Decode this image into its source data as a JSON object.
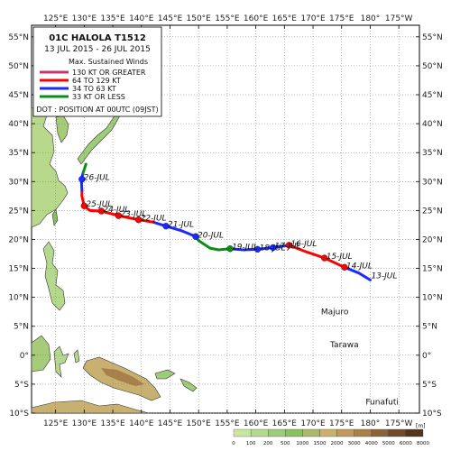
{
  "map": {
    "lon_ticks": [
      "125°E",
      "130°E",
      "135°E",
      "140°E",
      "145°E",
      "150°E",
      "155°E",
      "160°E",
      "165°E",
      "170°E",
      "175°E",
      "180°",
      "175°W"
    ],
    "lon_values": [
      125,
      130,
      135,
      140,
      145,
      150,
      155,
      160,
      165,
      170,
      175,
      180,
      185
    ],
    "lat_ticks": [
      "55°N",
      "50°N",
      "45°N",
      "40°N",
      "35°N",
      "30°N",
      "25°N",
      "20°N",
      "15°N",
      "10°N",
      "5°N",
      "0°",
      "5°S",
      "10°S"
    ],
    "lat_values": [
      55,
      50,
      45,
      40,
      35,
      30,
      25,
      20,
      15,
      10,
      5,
      0,
      -5,
      -10
    ],
    "places": [
      {
        "name": "Majuro",
        "lon": 171.4,
        "lat": 7.1
      },
      {
        "name": "Tarawa",
        "lon": 173.0,
        "lat": 1.4
      },
      {
        "name": "Funafuti",
        "lon": 179.2,
        "lat": -8.5
      }
    ],
    "colorbar": {
      "ticks": [
        "0",
        "100",
        "200",
        "500",
        "1000",
        "1500",
        "2000",
        "3000",
        "4000",
        "5000",
        "6000",
        "8000"
      ],
      "unit": "[m]",
      "colors": [
        "#c8e6a0",
        "#b4d98c",
        "#9fcc78",
        "#8bbf64",
        "#a9b86a",
        "#c8b070",
        "#c09a5e",
        "#a8804a",
        "#8a6438",
        "#6e4c2a",
        "#52361e"
      ]
    }
  },
  "legend": {
    "title": "01C  HALOLA  T1512",
    "dates": "13 JUL 2015 - 26 JUL 2015",
    "subtitle": "Max. Sustained Winds",
    "entries": [
      {
        "label": "130 KT OR GREATER",
        "color": "#c4386e"
      },
      {
        "label": "64 TO 129 KT",
        "color": "#ff0000"
      },
      {
        "label": "34 TO 63 KT",
        "color": "#1a2bff"
      },
      {
        "label": "33 KT OR LESS",
        "color": "#0a8f16"
      }
    ],
    "dot_note": "DOT : POSITION AT 00UTC (09JST)"
  },
  "track": {
    "segments": [
      {
        "color": "#1a2bff",
        "points": [
          [
            180.0,
            13.0
          ],
          [
            178.0,
            14.2
          ],
          [
            175.5,
            15.2
          ]
        ]
      },
      {
        "color": "#ff0000",
        "points": [
          [
            175.5,
            15.2
          ],
          [
            172.0,
            16.8
          ],
          [
            169.0,
            17.8
          ],
          [
            165.8,
            19.0
          ]
        ]
      },
      {
        "color": "#1a2bff",
        "points": [
          [
            165.8,
            19.0
          ],
          [
            163.0,
            18.6
          ],
          [
            160.3,
            18.3
          ],
          [
            157.8,
            18.2
          ],
          [
            155.5,
            18.4
          ]
        ]
      },
      {
        "color": "#0a8f16",
        "points": [
          [
            155.5,
            18.4
          ],
          [
            153.5,
            18.2
          ],
          [
            152.0,
            18.5
          ],
          [
            150.0,
            19.8
          ],
          [
            149.5,
            20.5
          ]
        ]
      },
      {
        "color": "#1a2bff",
        "points": [
          [
            149.5,
            20.5
          ],
          [
            147.0,
            21.5
          ],
          [
            144.3,
            22.3
          ],
          [
            142.0,
            23.0
          ]
        ]
      },
      {
        "color": "#ff0000",
        "points": [
          [
            142.0,
            23.0
          ],
          [
            139.5,
            23.4
          ],
          [
            136.0,
            24.1
          ],
          [
            133.0,
            24.9
          ],
          [
            131.0,
            25.0
          ],
          [
            130.0,
            25.8
          ],
          [
            129.6,
            27.5
          ],
          [
            129.6,
            28.5
          ]
        ]
      },
      {
        "color": "#1a2bff",
        "points": [
          [
            129.6,
            28.5
          ],
          [
            129.5,
            30.4
          ],
          [
            129.8,
            31.5
          ]
        ]
      },
      {
        "color": "#0a8f16",
        "points": [
          [
            129.8,
            31.5
          ],
          [
            130.1,
            32.4
          ],
          [
            130.3,
            33.0
          ]
        ]
      }
    ],
    "dots": [
      {
        "lon": 175.5,
        "lat": 15.2,
        "color": "#ff0000",
        "label": "14-JUL"
      },
      {
        "lon": 172.0,
        "lat": 16.8,
        "color": "#ff0000",
        "label": "15-JUL"
      },
      {
        "lon": 165.8,
        "lat": 19.0,
        "color": "#ff0000",
        "label": "16-JUL"
      },
      {
        "lon": 163.0,
        "lat": 18.6,
        "color": "#1a2bff",
        "label": "17-JUL"
      },
      {
        "lon": 160.3,
        "lat": 18.3,
        "color": "#1a2bff",
        "label": "18-JUL"
      },
      {
        "lon": 155.5,
        "lat": 18.4,
        "color": "#0a8f16",
        "label": "19-JUL"
      },
      {
        "lon": 149.5,
        "lat": 20.5,
        "color": "#1a2bff",
        "label": "20-JUL"
      },
      {
        "lon": 144.3,
        "lat": 22.3,
        "color": "#1a2bff",
        "label": "21-JUL"
      },
      {
        "lon": 139.5,
        "lat": 23.4,
        "color": "#ff0000",
        "label": "22-JUL"
      },
      {
        "lon": 136.0,
        "lat": 24.1,
        "color": "#ff0000",
        "label": "23-JUL"
      },
      {
        "lon": 133.0,
        "lat": 24.9,
        "color": "#ff0000",
        "label": "24-JUL"
      },
      {
        "lon": 130.0,
        "lat": 25.8,
        "color": "#ff0000",
        "label": "25-JUL"
      },
      {
        "lon": 129.6,
        "lat": 30.4,
        "color": "#1a2bff",
        "label": "26-JUL"
      }
    ],
    "extra_labels": [
      {
        "lon": 180.0,
        "lat": 13.0,
        "label": "13-JUL"
      }
    ]
  }
}
